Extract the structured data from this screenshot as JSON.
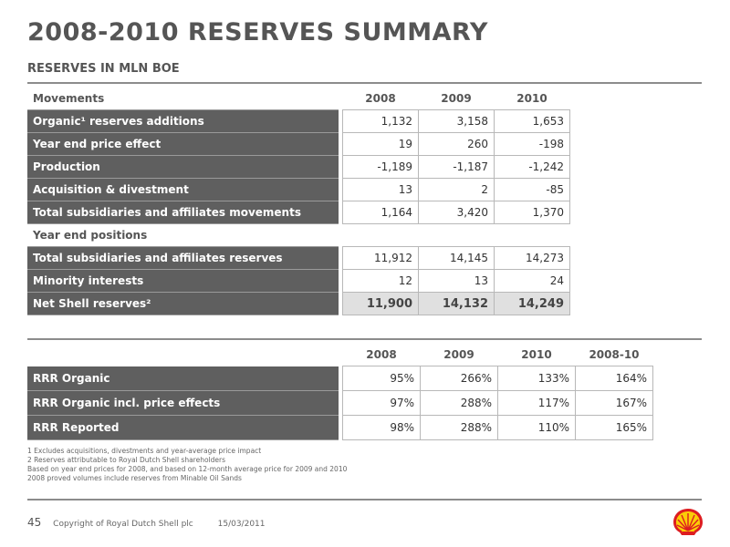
{
  "title": "2008-2010 RESERVES SUMMARY",
  "subtitle": "RESERVES IN MLN BOE",
  "table1": {
    "header": {
      "label": "Movements",
      "years": [
        "2008",
        "2009",
        "2010"
      ]
    },
    "rows": [
      {
        "label": "Organic¹ reserves additions",
        "values": [
          "1,132",
          "3,158",
          "1,653"
        ]
      },
      {
        "label": "Year end price effect",
        "values": [
          "19",
          "260",
          "-198"
        ]
      },
      {
        "label": "Production",
        "values": [
          "-1,189",
          "-1,187",
          "-1,242"
        ]
      },
      {
        "label": "Acquisition & divestment",
        "values": [
          "13",
          "2",
          "-85"
        ]
      },
      {
        "label": "Total subsidiaries and affiliates movements",
        "values": [
          "1,164",
          "3,420",
          "1,370"
        ]
      }
    ],
    "section_label": "Year end positions",
    "rows2": [
      {
        "label": "Total subsidiaries and affiliates reserves",
        "values": [
          "11,912",
          "14,145",
          "14,273"
        ]
      },
      {
        "label": "Minority interests",
        "values": [
          "12",
          "13",
          "24"
        ]
      },
      {
        "label": "Net Shell reserves²",
        "values": [
          "11,900",
          "14,132",
          "14,249"
        ]
      }
    ]
  },
  "table2": {
    "years": [
      "2008",
      "2009",
      "2010",
      "2008-10"
    ],
    "rows": [
      {
        "label": "RRR Organic",
        "values": [
          "95%",
          "266%",
          "133%",
          "164%"
        ]
      },
      {
        "label": "RRR Organic incl. price effects",
        "values": [
          "97%",
          "288%",
          "117%",
          "167%"
        ]
      },
      {
        "label": "RRR Reported",
        "values": [
          "98%",
          "288%",
          "110%",
          "165%"
        ]
      }
    ]
  },
  "notes": [
    "1 Excludes acquisitions, divestments and year-average price impact",
    "2 Reserves attributable to Royal Dutch Shell shareholders",
    "Based on year end prices for 2008, and based on 12-month average price for 2009 and 2010",
    "2008 proved volumes include reserves from Minable Oil Sands"
  ],
  "footer": {
    "page": "45",
    "copyright": "Copyright of Royal Dutch Shell plc",
    "date": "15/03/2011"
  },
  "colors": {
    "label_bg": "#5f5f5f",
    "total_bg": "#e0e0e0",
    "logo_red": "#dd1d21",
    "logo_yellow": "#fbce07"
  },
  "logo_icon": "shell-logo-icon"
}
